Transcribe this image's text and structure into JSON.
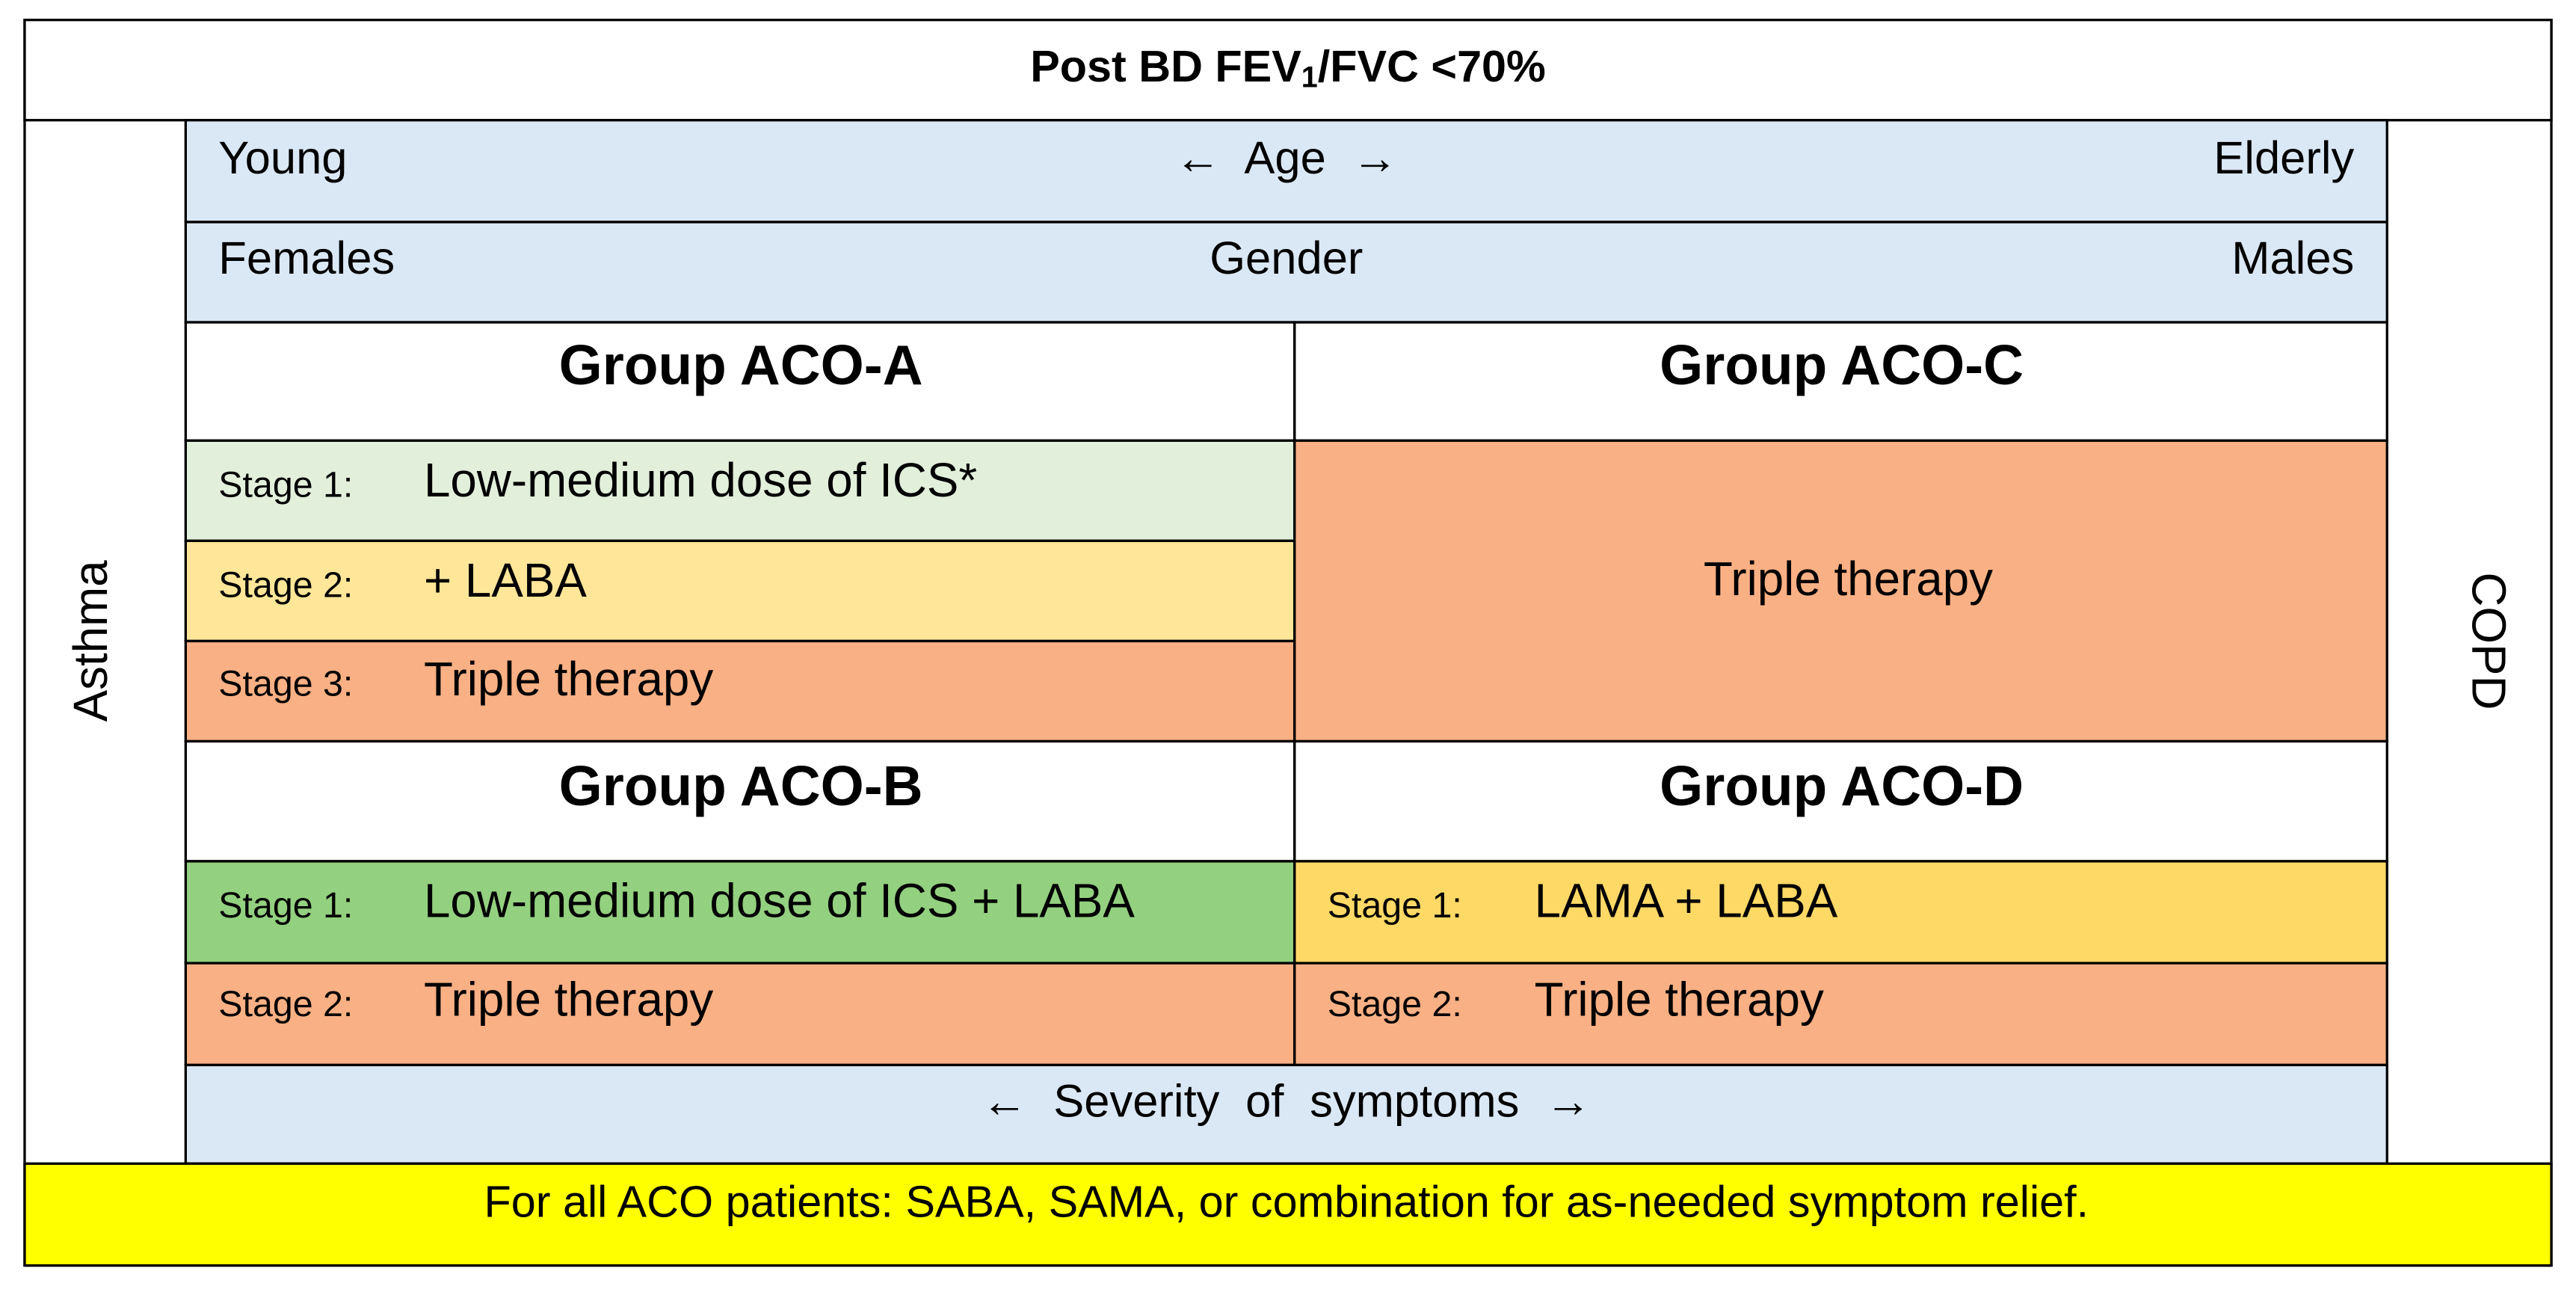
{
  "header": {
    "title": {
      "before": "Post BD FEV",
      "subscript": "1",
      "after": "/FVC <70%"
    }
  },
  "side_labels": {
    "left": "Asthma",
    "right": "COPD"
  },
  "age_row": {
    "left": "Young",
    "center": "← Age →",
    "right": "Elderly"
  },
  "gender_row": {
    "left": "Females",
    "center": "Gender",
    "right": "Males"
  },
  "groups": [
    {
      "name": "Group ACO-A",
      "stages": [
        {
          "label": "Stage 1:",
          "text": "Low-medium dose of ICS*"
        },
        {
          "label": "Stage 2:",
          "text": "+ LABA"
        },
        {
          "label": "Stage 3:",
          "text": "Triple therapy"
        }
      ]
    },
    {
      "name": "Group ACO-C",
      "text": "Triple therapy"
    },
    {
      "name": "Group ACO-B",
      "stages": [
        {
          "label": "Stage 1:",
          "text": "Low-medium dose of ICS + LABA"
        },
        {
          "label": "Stage 2:",
          "text": "Triple therapy"
        }
      ]
    },
    {
      "name": "Group ACO-D",
      "stages": [
        {
          "label": "Stage 1:",
          "text": "LAMA + LABA"
        },
        {
          "label": "Stage 2:",
          "text": "Triple therapy"
        }
      ]
    }
  ],
  "severity_row": "← Severity of symptoms →",
  "footer": "For all ACO patients: SABA, SAMA, or combination for as-needed symptom relief."
}
